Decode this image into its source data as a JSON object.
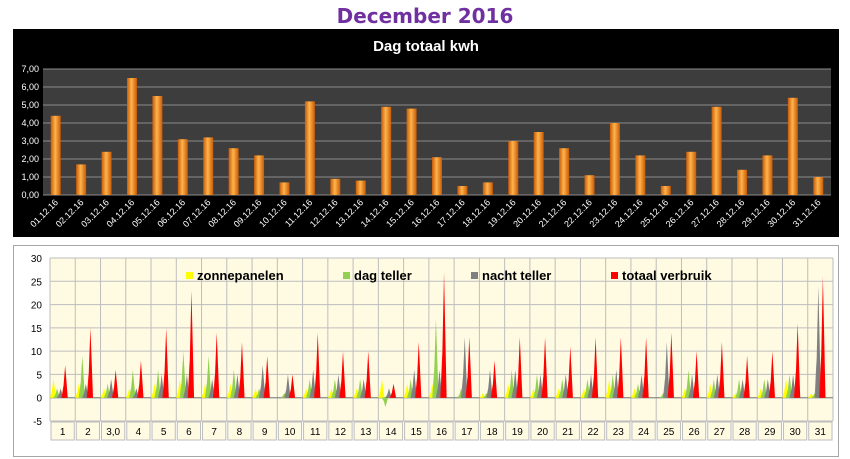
{
  "page_title": "December 2016",
  "chart_data": [
    {
      "type": "bar",
      "title": "Dag totaal kwh",
      "xlabel": "",
      "ylabel": "",
      "ylim": [
        0,
        7
      ],
      "y_ticks": [
        "0,00",
        "1,00",
        "2,00",
        "3,00",
        "4,00",
        "5,00",
        "6,00",
        "7,00"
      ],
      "grid": true,
      "categories": [
        "01.12.16",
        "02.12.16",
        "03.12.16",
        "04.12.16",
        "05.12.16",
        "06.12.16",
        "07.12.16",
        "08.12.16",
        "09.12.16",
        "10.12.16",
        "11.12.16",
        "12.12.16",
        "13.12.16",
        "14.12.16",
        "15.12.16",
        "16.12.16",
        "17.12.16",
        "18.12.16",
        "19.12.16",
        "20.12.16",
        "21.12.16",
        "22.12.16",
        "23.12.16",
        "24.12.16",
        "25.12.16",
        "26.12.16",
        "27.12.16",
        "28.12.16",
        "29.12.16",
        "30.12.16",
        "31.12.16"
      ],
      "values": [
        4.4,
        1.7,
        2.4,
        6.5,
        5.5,
        3.1,
        3.2,
        2.6,
        2.2,
        0.7,
        5.2,
        0.9,
        0.8,
        4.9,
        4.8,
        2.1,
        0.5,
        0.7,
        3.0,
        3.5,
        2.6,
        1.1,
        4.0,
        2.2,
        0.5,
        2.4,
        4.9,
        1.4,
        2.2,
        5.4,
        1.0
      ],
      "colors": {
        "bar": "#f08c1e",
        "plot_bg": "#3d3d3d",
        "bg": "#000000",
        "grid": "#8c8c8c",
        "text": "#ffffff"
      }
    },
    {
      "type": "area",
      "title": "",
      "ylim": [
        -5,
        30
      ],
      "y_ticks": [
        "-5",
        "0",
        "5",
        "10",
        "15",
        "20",
        "25",
        "30"
      ],
      "grid": true,
      "legend_position": "top",
      "categories": [
        "1",
        "2",
        "3,0",
        "4",
        "5",
        "6",
        "7",
        "8",
        "9",
        "10",
        "11",
        "12",
        "13",
        "14",
        "15",
        "16",
        "17",
        "18",
        "19",
        "20",
        "21",
        "22",
        "23",
        "24",
        "25",
        "26",
        "27",
        "28",
        "29",
        "30",
        "31"
      ],
      "series": [
        {
          "name": "zonnepanelen",
          "color": "#ffff00",
          "values": [
            4,
            3,
            2,
            2,
            3,
            4,
            3,
            3,
            2,
            0,
            2,
            2,
            2,
            4,
            3,
            3,
            0,
            1,
            3,
            2,
            2,
            2,
            4,
            2,
            0,
            2,
            3,
            1,
            2,
            4,
            1
          ]
        },
        {
          "name": "dag teller",
          "color": "#92d050",
          "values": [
            2,
            9,
            3,
            6,
            6,
            10,
            9,
            6,
            2,
            1,
            4,
            4,
            4,
            -2,
            4,
            17,
            2,
            1,
            6,
            5,
            4,
            4,
            5,
            3,
            1,
            6,
            4,
            4,
            4,
            5,
            1
          ]
        },
        {
          "name": "nacht teller",
          "color": "#808080",
          "values": [
            2,
            3,
            4,
            2,
            5,
            5,
            4,
            5,
            7,
            5,
            6,
            5,
            4,
            2,
            6,
            6,
            13,
            6,
            6,
            5,
            5,
            5,
            6,
            5,
            12,
            5,
            5,
            4,
            4,
            5,
            24
          ]
        },
        {
          "name": "totaal verbruik",
          "color": "#ff0000",
          "values": [
            7,
            15,
            6,
            8,
            15,
            23,
            14,
            12,
            9,
            5,
            14,
            10,
            10,
            3,
            12,
            27,
            13,
            8,
            13,
            13,
            11,
            13,
            13,
            13,
            14,
            10,
            12,
            9,
            10,
            16,
            26
          ]
        }
      ]
    }
  ]
}
